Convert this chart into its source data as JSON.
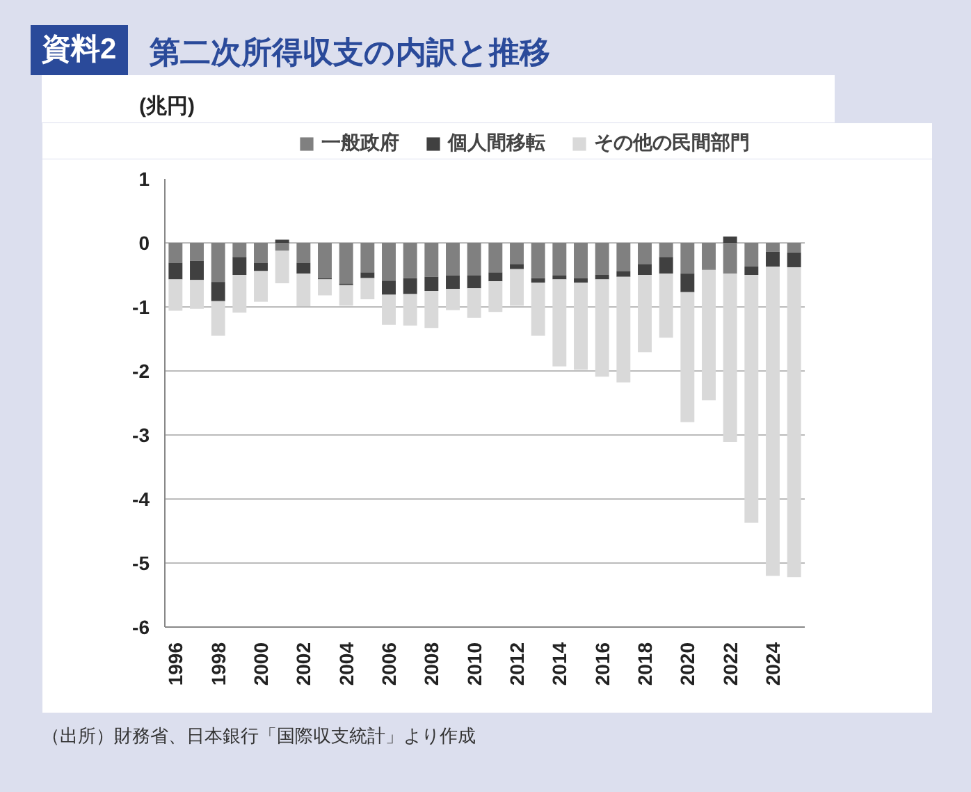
{
  "chart_data": {
    "type": "bar",
    "stacked": true,
    "title": "第二次所得収支の内訳と推移",
    "ylabel": "(兆円)",
    "annotations": [
      "資料2",
      "（出所）財務省、日本銀行「国際収支統計」より作成"
    ],
    "x": [
      1996,
      1997,
      1998,
      1999,
      2000,
      2001,
      2002,
      2003,
      2004,
      2005,
      2006,
      2007,
      2008,
      2009,
      2010,
      2011,
      2012,
      2013,
      2014,
      2015,
      2016,
      2017,
      2018,
      2019,
      2020,
      2021,
      2022,
      2023,
      2024,
      2025
    ],
    "series": [
      {
        "name": "一般政府",
        "color": "#808080",
        "values": [
          -0.31,
          -0.28,
          -0.61,
          -0.22,
          -0.31,
          -0.12,
          -0.31,
          -0.55,
          -0.64,
          -0.46,
          -0.59,
          -0.55,
          -0.53,
          -0.51,
          -0.51,
          -0.46,
          -0.33,
          -0.55,
          -0.51,
          -0.55,
          -0.5,
          -0.44,
          -0.33,
          -0.22,
          -0.48,
          -0.41,
          -0.48,
          -0.37,
          -0.14,
          -0.15
        ]
      },
      {
        "name": "個人間移転",
        "color": "#404040",
        "values": [
          -0.26,
          -0.3,
          -0.3,
          -0.28,
          -0.13,
          0.05,
          -0.17,
          -0.02,
          -0.02,
          -0.09,
          -0.22,
          -0.25,
          -0.22,
          -0.21,
          -0.2,
          -0.14,
          -0.08,
          -0.07,
          -0.06,
          -0.07,
          -0.07,
          -0.09,
          -0.17,
          -0.26,
          -0.29,
          -0.01,
          0.1,
          -0.13,
          -0.23,
          -0.23
        ]
      },
      {
        "name": "その他の民間部門",
        "color": "#d9d9d9",
        "values": [
          -0.49,
          -0.45,
          -0.54,
          -0.59,
          -0.48,
          -0.51,
          -0.51,
          -0.25,
          -0.32,
          -0.33,
          -0.47,
          -0.49,
          -0.58,
          -0.33,
          -0.46,
          -0.48,
          -0.57,
          -0.83,
          -1.36,
          -1.36,
          -1.52,
          -1.65,
          -1.21,
          -1.0,
          -2.03,
          -2.04,
          -2.63,
          -3.87,
          -4.83,
          -4.84
        ]
      }
    ],
    "xlim": [
      1995.5,
      2025.5
    ],
    "xticks": [
      1996,
      1998,
      2000,
      2002,
      2004,
      2006,
      2008,
      2010,
      2012,
      2014,
      2016,
      2018,
      2020,
      2022,
      2024
    ],
    "ylim": [
      -6,
      1
    ],
    "yticks": [
      -6,
      -5,
      -4,
      -3,
      -2,
      -1,
      0,
      1
    ],
    "grid": "y",
    "legend": "top"
  }
}
